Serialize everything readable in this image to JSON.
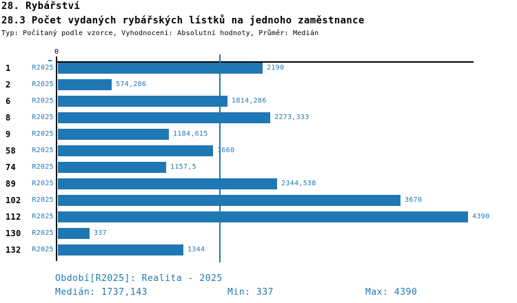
{
  "header": {
    "title_line1": "28. Rybářství",
    "title_line2": "28.3 Počet vydaných rybářských lístků na jednoho zaměstnance",
    "meta": "Typ: Počítaný podle vzorce, Vyhodnocení: Absolutní hodnoty, Průměr: Medián"
  },
  "chart_data": {
    "type": "bar",
    "orientation": "horizontal",
    "title": "28.3 Počet vydaných rybářských lístků na jednoho zaměstnance",
    "zero_label": "0",
    "series_label": "R2025",
    "categories": [
      "1",
      "2",
      "6",
      "8",
      "9",
      "58",
      "74",
      "89",
      "102",
      "112",
      "130",
      "132"
    ],
    "values": [
      2190,
      574.286,
      1814.286,
      2273.333,
      1184.615,
      1660,
      1157.5,
      2344.538,
      3670,
      4390,
      337,
      1344
    ],
    "value_labels": [
      "2190",
      "574,286",
      "1814,286",
      "2273,333",
      "1184,615",
      "1660",
      "1157,5",
      "2344,538",
      "3670",
      "4390",
      "337",
      "1344"
    ],
    "median": 1737.143,
    "median_label": "1737,143",
    "min": 337,
    "max": 4390,
    "xlim": [
      0,
      4450
    ],
    "grid": "single vertical median line",
    "legend_position": "none",
    "bar_color": "#1f77b4",
    "label_color": "#1f77b4",
    "axis_color": "#000000"
  },
  "footer": {
    "period": "Období[R2025]: Realita - 2025",
    "median": "Medián: 1737,143",
    "min": "Min: 337",
    "max": "Max: 4390",
    "text_color": "#1f77b4"
  }
}
